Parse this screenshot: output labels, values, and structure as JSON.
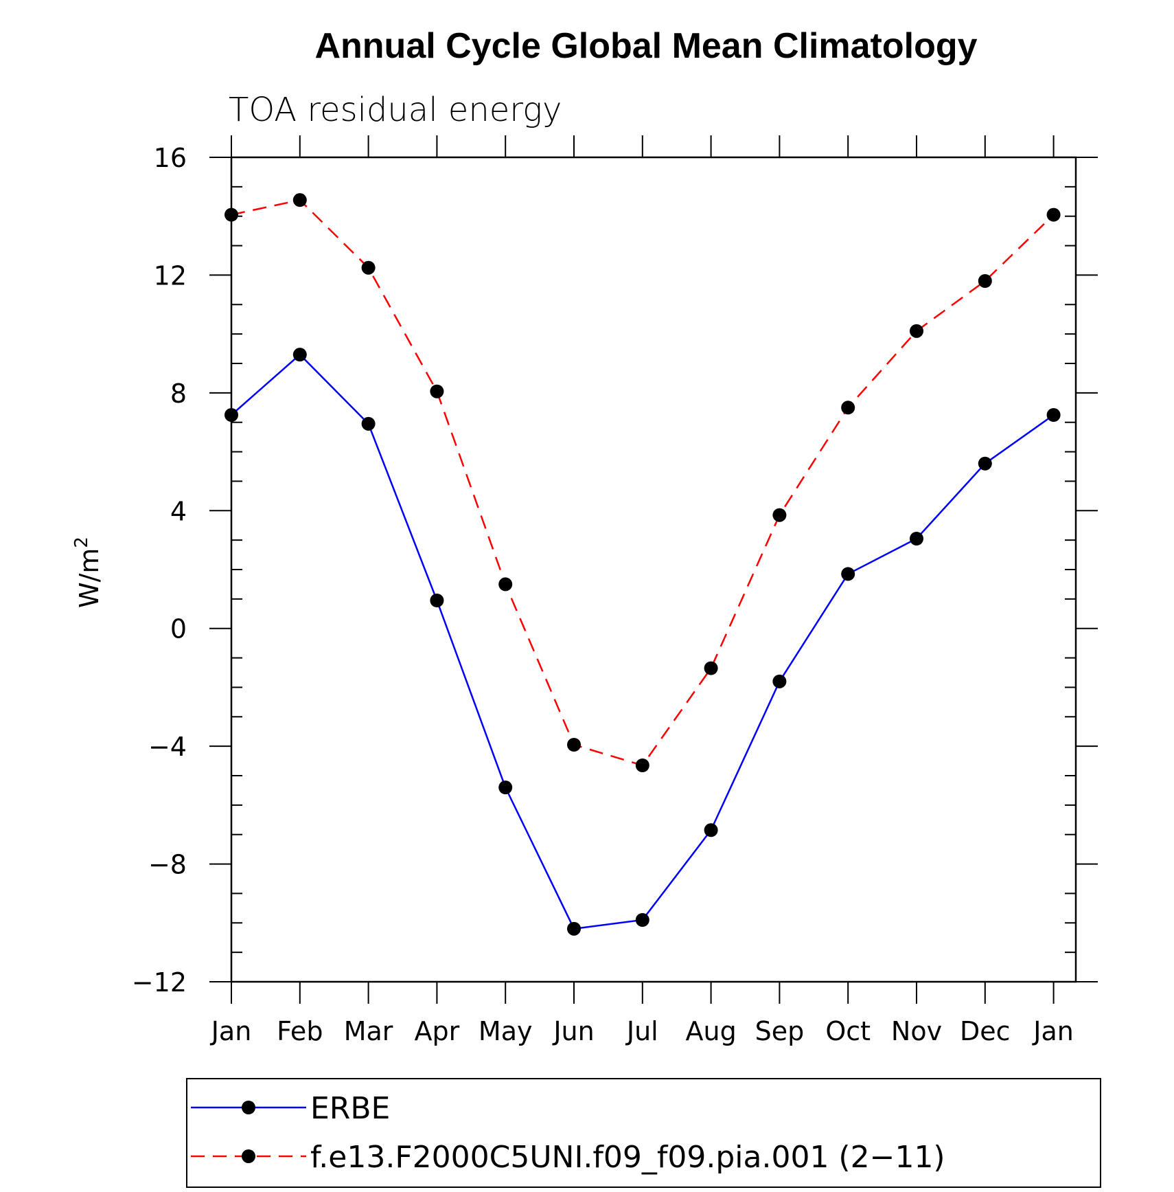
{
  "chart_data": {
    "type": "line",
    "title": "Annual Cycle Global Mean Climatology",
    "subtitle": "TOA residual energy",
    "ylabel": "W/m",
    "ylabel_superscript": "2",
    "xlabel": "",
    "categories": [
      "Jan",
      "Feb",
      "Mar",
      "Apr",
      "May",
      "Jun",
      "Jul",
      "Aug",
      "Sep",
      "Oct",
      "Nov",
      "Dec",
      "Jan"
    ],
    "ylim": [
      -12,
      16
    ],
    "yticks": [
      16,
      12,
      8,
      4,
      0,
      -4,
      -8,
      -12
    ],
    "ytick_labels": [
      "16",
      "12",
      "8",
      "4",
      "0",
      "−4",
      "−8",
      "−12"
    ],
    "grid": false,
    "legend_position": "bottom",
    "series": [
      {
        "name": "ERBE",
        "color": "#0000ff",
        "line_style": "solid",
        "marker": "filled-circle",
        "values": [
          7.25,
          9.3,
          6.95,
          0.95,
          -5.4,
          -10.2,
          -9.9,
          -6.85,
          -1.8,
          1.85,
          3.05,
          5.6,
          7.25
        ]
      },
      {
        "name": "f.e13.F2000C5UNI.f09_f09.pia.001 (2−11)",
        "color": "#ff0000",
        "line_style": "dashed",
        "marker": "filled-circle",
        "values": [
          14.05,
          14.55,
          12.25,
          8.05,
          1.5,
          -3.95,
          -4.65,
          -1.35,
          3.85,
          7.5,
          10.1,
          11.8,
          14.05
        ]
      }
    ]
  }
}
